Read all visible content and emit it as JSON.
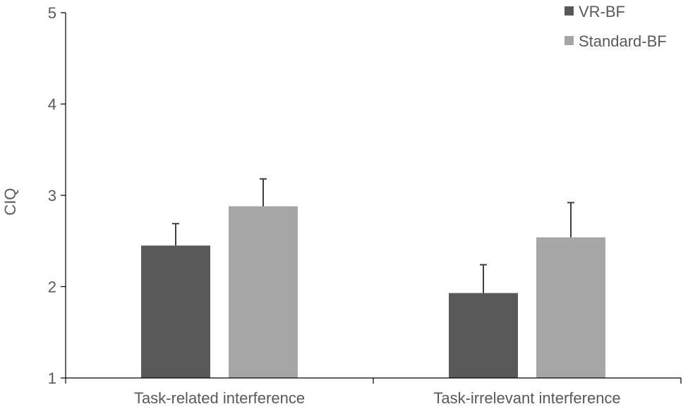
{
  "chart_data": {
    "type": "bar",
    "title": "",
    "xlabel": "",
    "ylabel": "CIQ",
    "ylim": [
      1,
      5
    ],
    "yticks": [
      1,
      2,
      3,
      4,
      5
    ],
    "grid": false,
    "legend_position": "top-right",
    "categories": [
      "Task-related interference",
      "Task-irrelevant interference"
    ],
    "series": [
      {
        "name": "VR-BF",
        "color": "#595959",
        "values": [
          2.45,
          1.93
        ],
        "error": [
          0.24,
          0.31
        ]
      },
      {
        "name": "Standard-BF",
        "color": "#a6a6a6",
        "values": [
          2.88,
          2.54
        ],
        "error": [
          0.3,
          0.38
        ]
      }
    ]
  }
}
